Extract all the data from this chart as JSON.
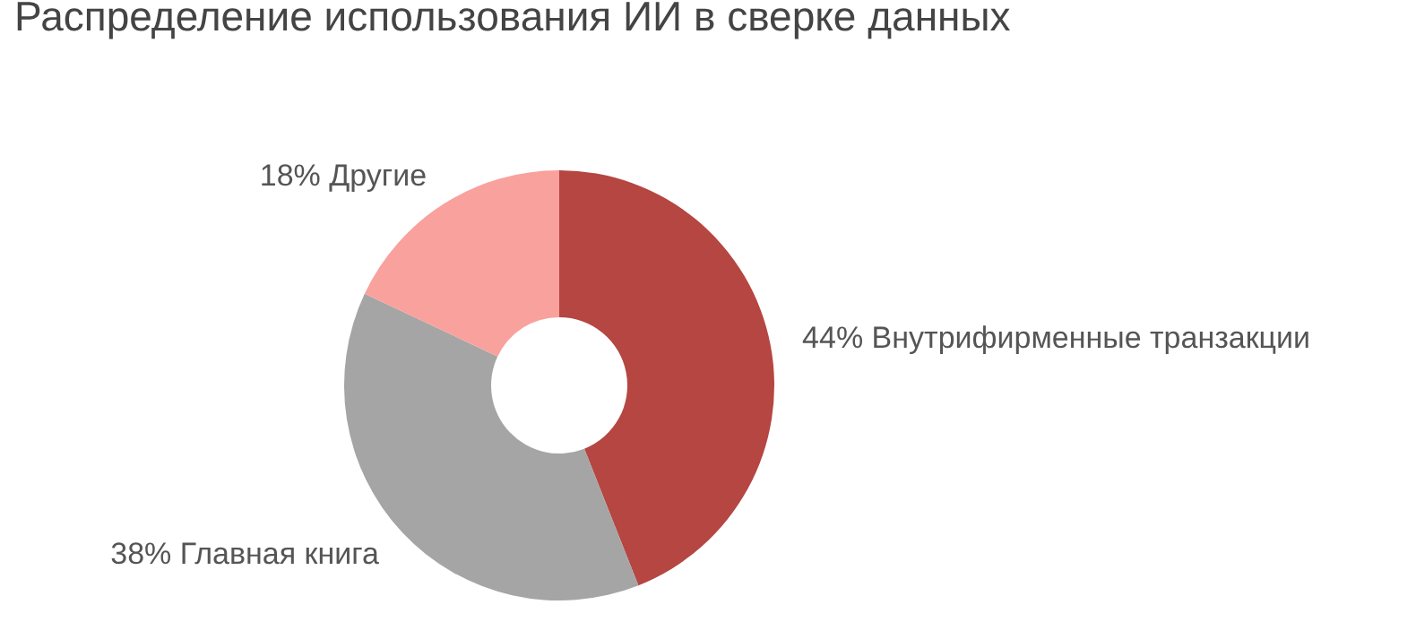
{
  "chart_data": {
    "type": "donut",
    "title": "Распределение использования ИИ в сверке данных",
    "categories": [
      "Внутрифирменные транзакции",
      "Главная книга",
      "Другие"
    ],
    "values": [
      44,
      38,
      18
    ],
    "value_labels": [
      "44%",
      "38%",
      "18%"
    ],
    "colors": [
      "#b54641",
      "#a5a5a5",
      "#f9a19d"
    ],
    "data_labels": true,
    "legend": false
  }
}
